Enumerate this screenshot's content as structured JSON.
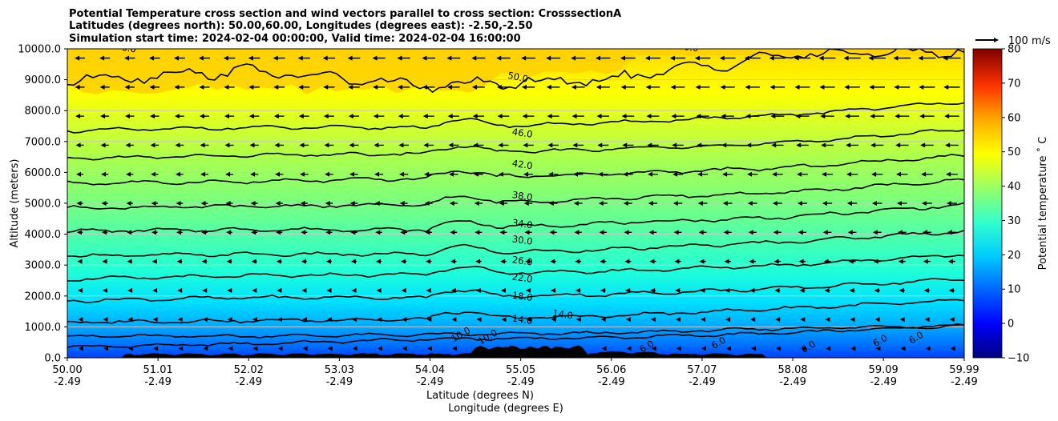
{
  "chart_data": {
    "type": "contour",
    "title_lines": [
      "Potential Temperature cross section and wind vectors parallel to cross section: CrosssectionA",
      "Latitudes (degrees north): 50.00,60.00, Longitudes (degrees east): -2.50,-2.50",
      "Simulation start time: 2024-02-04 00:00:00, Valid time: 2024-02-04 16:00:00"
    ],
    "ylabel": "Altitude (meters)",
    "xlabel_lines": [
      "Latitude (degrees N)",
      "Longitude (degrees E)"
    ],
    "x_ticks_lat": [
      "50.00",
      "51.01",
      "52.02",
      "53.03",
      "54.04",
      "55.05",
      "56.06",
      "57.07",
      "58.08",
      "59.09",
      "59.99"
    ],
    "x_ticks_lon": [
      "-2.49",
      "-2.49",
      "-2.49",
      "-2.49",
      "-2.49",
      "-2.49",
      "-2.49",
      "-2.49",
      "-2.49",
      "-2.49",
      "-2.49"
    ],
    "xlim": [
      50.0,
      59.99
    ],
    "y_ticks": [
      "0.0",
      "1000.0",
      "2000.0",
      "3000.0",
      "4000.0",
      "5000.0",
      "6000.0",
      "7000.0",
      "8000.0",
      "9000.0",
      "10000.0"
    ],
    "ylim": [
      0,
      10000
    ],
    "grid": "horizontal",
    "colorbar": {
      "label": "Potential temperature $^\\circ$C",
      "label_text": "Potential temperature ˚ C",
      "ticks": [
        "80",
        "70",
        "60",
        "50",
        "40",
        "30",
        "20",
        "10",
        "0",
        "−10"
      ],
      "range": [
        -10,
        80
      ],
      "colormap": "jet"
    },
    "quiver_key": {
      "label": "100 m/s",
      "speed": 100
    },
    "contour_levels": [
      6.0,
      10.0,
      14.0,
      18.0,
      22.0,
      26.0,
      30.0,
      34.0,
      38.0,
      42.0,
      46.0,
      50.0
    ],
    "contour_labels": [
      "50.0",
      "46.0",
      "42.0",
      "38.0",
      "34.0",
      "30.0",
      "26.0",
      "22.0",
      "18.0",
      "14.0",
      "14.0",
      "10.0",
      "10.0",
      "6.0",
      "6.0",
      "6.0",
      "6.0",
      "6.0",
      "6.0",
      "50.0",
      "50.0"
    ],
    "contour_heights": [
      {
        "level": 6.0,
        "heights": [
          350,
          450,
          600,
          650,
          800,
          1050
        ]
      },
      {
        "level": 10.0,
        "heights": [
          700,
          700,
          750,
          800,
          950,
          1050
        ]
      },
      {
        "level": 14.0,
        "heights": [
          1150,
          1200,
          1250,
          1350,
          1600,
          1850
        ]
      },
      {
        "level": 18.0,
        "heights": [
          1850,
          1950,
          1950,
          2050,
          2250,
          2550
        ]
      },
      {
        "level": 22.0,
        "heights": [
          2550,
          2650,
          2700,
          2800,
          3000,
          3350
        ]
      },
      {
        "level": 26.0,
        "heights": [
          3300,
          3350,
          3350,
          3500,
          3750,
          4100
        ]
      },
      {
        "level": 30.0,
        "heights": [
          4100,
          4150,
          4150,
          4350,
          4550,
          4950
        ]
      },
      {
        "level": 34.0,
        "heights": [
          4850,
          4900,
          4950,
          5150,
          5350,
          5750
        ]
      },
      {
        "level": 38.0,
        "heights": [
          5650,
          5700,
          5800,
          5950,
          6150,
          6550
        ]
      },
      {
        "level": 42.0,
        "heights": [
          6450,
          6550,
          6600,
          6750,
          6950,
          7400
        ]
      },
      {
        "level": 46.0,
        "heights": [
          7350,
          7450,
          7450,
          7600,
          7850,
          8300
        ]
      },
      {
        "level": 50.0,
        "heights": [
          9000,
          9300,
          8800,
          9000,
          9800,
          9950
        ]
      }
    ],
    "wind_vectors": "parallel component, predominantly southward (pointing left), increasing with altitude"
  }
}
